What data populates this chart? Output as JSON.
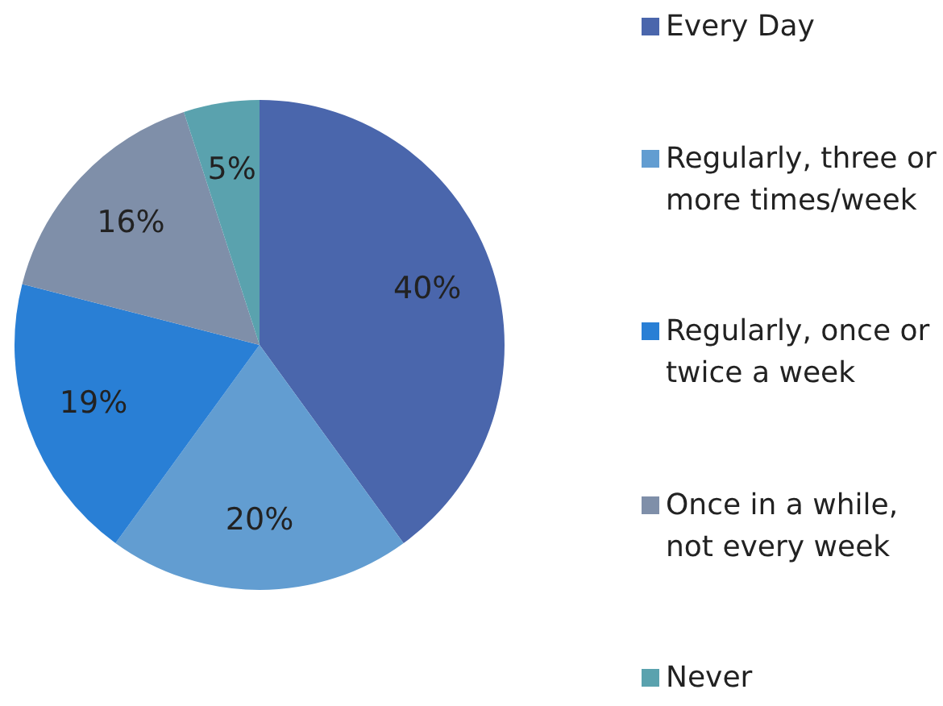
{
  "chart_data": {
    "type": "pie",
    "categories": [
      "Every Day",
      "Regularly, three or more times/week",
      "Regularly, once or twice a week",
      "Once in a while, not every week",
      "Never"
    ],
    "values": [
      40,
      20,
      19,
      16,
      5
    ],
    "value_labels": [
      "40%",
      "20%",
      "19%",
      "16%",
      "5%"
    ],
    "colors": [
      "#4a66ac",
      "#629dd1",
      "#297fd5",
      "#7f8fa9",
      "#5aa2ae"
    ],
    "legend": "right"
  }
}
